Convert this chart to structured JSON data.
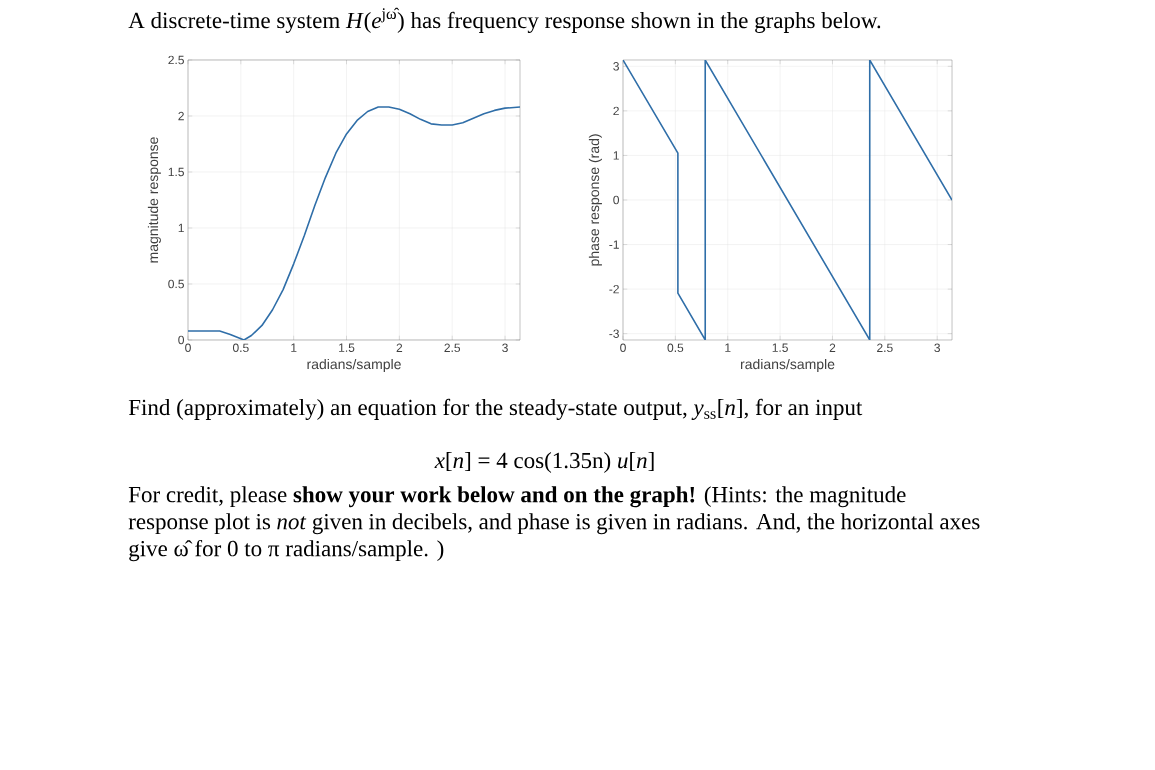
{
  "chart_data": [
    {
      "type": "line",
      "title": "A discrete-time system *H*(*e*$^{jω̂}$) has frequency response shown in the graphs below.",
      "annotations": [
        "Find (approximately) an equation for the steady-state output, *y*$_{ss}$[*n*], for an input",
        "*x*[*n*] = 4 cos(1.35n) *u*[*n*]",
        "For credit, please **show your work below and on the graph!** (Hints: the magnitude response plot is *not* given in decibels, and phase is given in radians. And, the horizontal axes give ω̂ for 0 to π radians/sample. )"
      ],
      "xlabel": "radians/sample",
      "ylabel": "magnitude response",
      "x": [
        0,
        0.2,
        0.3,
        0.4,
        0.53,
        0.6,
        0.7,
        0.8,
        0.9,
        1.0,
        1.1,
        1.2,
        1.3,
        1.4,
        1.5,
        1.6,
        1.7,
        1.8,
        1.9,
        2.0,
        2.1,
        2.2,
        2.3,
        2.4,
        2.5,
        2.6,
        2.7,
        2.8,
        2.9,
        3.0,
        3.1416
      ],
      "series": [
        {
          "color": "#2f6ea8",
          "values": [
            0.08,
            0.08,
            0.08,
            0.05,
            0.0,
            0.04,
            0.13,
            0.27,
            0.45,
            0.68,
            0.93,
            1.2,
            1.45,
            1.67,
            1.84,
            1.96,
            2.04,
            2.08,
            2.08,
            2.06,
            2.02,
            1.97,
            1.93,
            1.92,
            1.92,
            1.94,
            1.98,
            2.02,
            2.05,
            2.07,
            2.08
          ]
        }
      ],
      "xlim": [
        0,
        3.1416
      ],
      "xticks": [
        0,
        0.5,
        1,
        1.5,
        2,
        2.5,
        3
      ],
      "ylim": [
        0,
        2.5
      ],
      "yticks": [
        0,
        0.5,
        1,
        1.5,
        2,
        2.5
      ],
      "grid": true,
      "marker": "none"
    },
    {
      "type": "line",
      "xlabel": "radians/sample",
      "ylabel": "phase response (rad)",
      "x": [
        0,
        0.524,
        0.524,
        0.785,
        0.785,
        2.356,
        2.356,
        3.1416
      ],
      "series": [
        {
          "color": "#2f6ea8",
          "values": [
            3.14,
            1.05,
            -2.09,
            -3.14,
            3.14,
            -3.14,
            3.14,
            0
          ]
        }
      ],
      "xlim": [
        0,
        3.1416
      ],
      "xticks": [
        0,
        0.5,
        1,
        1.5,
        2,
        2.5,
        3
      ],
      "ylim": [
        -3.1416,
        3.1416
      ],
      "yticks": [
        -3,
        -2,
        -1,
        0,
        1,
        2,
        3
      ],
      "grid": true,
      "marker": "none"
    }
  ]
}
